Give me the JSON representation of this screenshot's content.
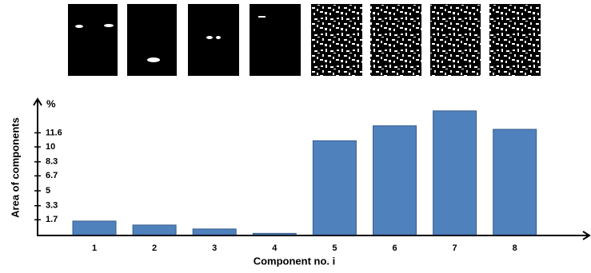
{
  "chart_data": {
    "type": "bar",
    "categories": [
      "1",
      "2",
      "3",
      "4",
      "5",
      "6",
      "7",
      "8"
    ],
    "values": [
      1.55,
      1.1,
      0.65,
      0.15,
      10.7,
      12.4,
      14.1,
      12.0
    ],
    "color": "#4f81bd",
    "ylim": [
      0,
      15
    ],
    "yticks": [
      1.7,
      3.3,
      5,
      6.7,
      8.3,
      10,
      11.6
    ],
    "y_label": "Area of components",
    "y_unit": "%",
    "x_label": "Component no. i"
  }
}
